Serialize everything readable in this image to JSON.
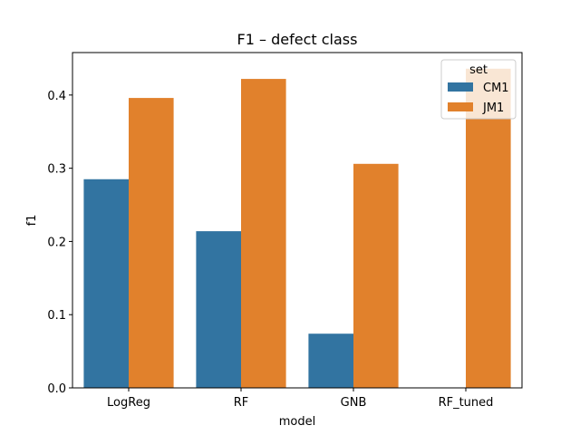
{
  "chart_data": {
    "type": "bar",
    "title": "F1 – defect class",
    "xlabel": "model",
    "ylabel": "f1",
    "categories": [
      "LogReg",
      "RF",
      "GNB",
      "RF_tuned"
    ],
    "series": [
      {
        "name": "CM1",
        "color": "#3274a1",
        "values": [
          0.285,
          0.214,
          0.074,
          0.0
        ]
      },
      {
        "name": "JM1",
        "color": "#e1812c",
        "values": [
          0.396,
          0.422,
          0.306,
          0.436
        ]
      }
    ],
    "ylim": [
      0,
      0.458
    ],
    "yticks": [
      0.0,
      0.1,
      0.2,
      0.3,
      0.4
    ],
    "ytick_labels": [
      "0.0",
      "0.1",
      "0.2",
      "0.3",
      "0.4"
    ],
    "legend": {
      "title": "set",
      "placement": "top-right"
    },
    "grid": false
  }
}
